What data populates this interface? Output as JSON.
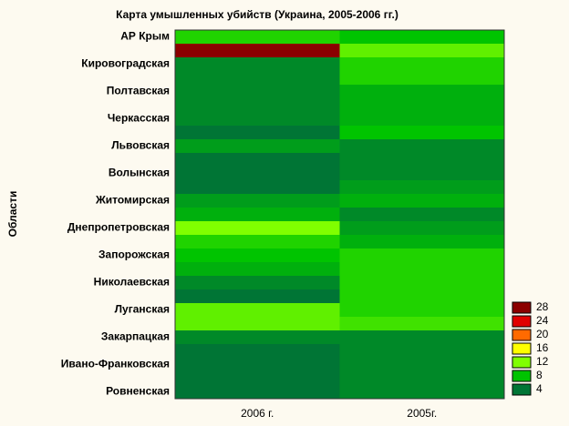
{
  "chart_data": {
    "type": "heatmap",
    "title": "Карта умышленных убийств (Украина, 2005-2006 гг.)",
    "y_label": "Области",
    "x": [
      "2006 г.",
      "2005г."
    ],
    "y": [
      "АР Крым",
      null,
      "Кировоградская",
      null,
      "Полтавская",
      null,
      "Черкасская",
      null,
      "Львовская",
      null,
      "Волынская",
      null,
      "Житомирская",
      null,
      "Днепропетровская",
      null,
      "Запорожская",
      null,
      "Николаевская",
      null,
      "Луганская",
      null,
      "Закарпацкая",
      null,
      "Ивано-Франковская",
      null,
      "Ровненская"
    ],
    "z": [
      [
        9,
        28,
        5,
        5,
        5,
        5,
        5,
        4,
        6,
        4,
        4,
        4,
        6,
        7,
        12,
        9,
        8,
        7,
        5,
        4,
        11,
        11,
        5,
        4,
        4,
        4,
        4
      ],
      [
        8,
        11,
        9,
        9,
        7,
        7,
        7,
        8,
        5,
        5,
        5,
        6,
        7,
        5,
        6,
        7,
        9,
        9,
        9,
        9,
        9,
        10,
        5,
        5,
        5,
        5,
        5
      ]
    ],
    "colorbar": {
      "ticks": [
        4,
        8,
        12,
        16,
        20,
        24,
        28
      ],
      "colors": [
        "#007535",
        "#00c400",
        "#80ff00",
        "#ffff00",
        "#ff6a00",
        "#e00000",
        "#8b0000"
      ]
    }
  }
}
